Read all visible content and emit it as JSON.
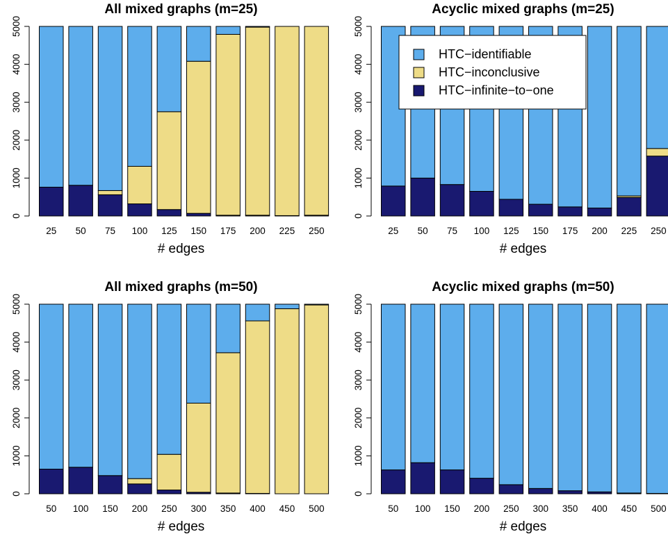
{
  "colors": {
    "identifiable": "#5DADEC",
    "inconclusive": "#EEDC87",
    "infinite": "#191970",
    "outline": "#000000"
  },
  "legend": {
    "entries": [
      {
        "label": "HTC−identifiable",
        "color_key": "identifiable"
      },
      {
        "label": "HTC−inconclusive",
        "color_key": "inconclusive"
      },
      {
        "label": "HTC−infinite−to−one",
        "color_key": "infinite"
      }
    ]
  },
  "chart_data": [
    {
      "type": "bar",
      "stacked": true,
      "title": "All mixed graphs (m=25)",
      "xlabel": "# edges",
      "ylabel": "",
      "ylim": [
        0,
        5000
      ],
      "yticks": [
        "0",
        "1000",
        "2000",
        "3000",
        "4000",
        "5000"
      ],
      "categories": [
        "25",
        "50",
        "75",
        "100",
        "125",
        "150",
        "175",
        "200",
        "225",
        "250"
      ],
      "series": [
        {
          "name": "HTC−infinite−to−one",
          "color_key": "infinite",
          "values": [
            760,
            810,
            560,
            320,
            170,
            70,
            20,
            20,
            10,
            20
          ]
        },
        {
          "name": "HTC−inconclusive",
          "color_key": "inconclusive",
          "values": [
            0,
            0,
            110,
            990,
            2580,
            4010,
            4770,
            4960,
            4990,
            4980
          ]
        },
        {
          "name": "HTC−identifiable",
          "color_key": "identifiable",
          "values": [
            4240,
            4190,
            4330,
            3690,
            2250,
            920,
            210,
            20,
            0,
            0
          ]
        }
      ]
    },
    {
      "type": "bar",
      "stacked": true,
      "title": "Acyclic mixed graphs (m=25)",
      "xlabel": "# edges",
      "ylabel": "",
      "ylim": [
        0,
        5000
      ],
      "yticks": [
        "0",
        "1000",
        "2000",
        "3000",
        "4000",
        "5000"
      ],
      "categories": [
        "25",
        "50",
        "75",
        "100",
        "125",
        "150",
        "175",
        "200",
        "225",
        "250"
      ],
      "legend_position": "top-right",
      "series": [
        {
          "name": "HTC−infinite−to−one",
          "color_key": "infinite",
          "values": [
            790,
            1000,
            830,
            650,
            440,
            310,
            240,
            210,
            490,
            1580
          ]
        },
        {
          "name": "HTC−inconclusive",
          "color_key": "inconclusive",
          "values": [
            0,
            0,
            0,
            0,
            0,
            0,
            0,
            0,
            40,
            200
          ]
        },
        {
          "name": "HTC−identifiable",
          "color_key": "identifiable",
          "values": [
            4210,
            4000,
            4170,
            4350,
            4560,
            4690,
            4760,
            4790,
            4470,
            3220
          ]
        }
      ]
    },
    {
      "type": "bar",
      "stacked": true,
      "title": "All mixed graphs (m=50)",
      "xlabel": "# edges",
      "ylabel": "",
      "ylim": [
        0,
        5000
      ],
      "yticks": [
        "0",
        "1000",
        "2000",
        "3000",
        "4000",
        "5000"
      ],
      "categories": [
        "50",
        "100",
        "150",
        "200",
        "250",
        "300",
        "350",
        "400",
        "450",
        "500"
      ],
      "series": [
        {
          "name": "HTC−infinite−to−one",
          "color_key": "infinite",
          "values": [
            650,
            700,
            480,
            260,
            100,
            40,
            20,
            10,
            0,
            0
          ]
        },
        {
          "name": "HTC−inconclusive",
          "color_key": "inconclusive",
          "values": [
            0,
            0,
            0,
            140,
            940,
            2350,
            3700,
            4550,
            4880,
            4980
          ]
        },
        {
          "name": "HTC−identifiable",
          "color_key": "identifiable",
          "values": [
            4350,
            4300,
            4520,
            4600,
            3960,
            2610,
            1280,
            440,
            120,
            20
          ]
        }
      ]
    },
    {
      "type": "bar",
      "stacked": true,
      "title": "Acyclic mixed graphs (m=50)",
      "xlabel": "# edges",
      "ylabel": "",
      "ylim": [
        0,
        5000
      ],
      "yticks": [
        "0",
        "1000",
        "2000",
        "3000",
        "4000",
        "5000"
      ],
      "categories": [
        "50",
        "100",
        "150",
        "200",
        "250",
        "300",
        "350",
        "400",
        "450",
        "500"
      ],
      "series": [
        {
          "name": "HTC−infinite−to−one",
          "color_key": "infinite",
          "values": [
            630,
            820,
            630,
            410,
            240,
            140,
            80,
            50,
            20,
            10
          ]
        },
        {
          "name": "HTC−inconclusive",
          "color_key": "inconclusive",
          "values": [
            0,
            0,
            0,
            0,
            0,
            0,
            0,
            0,
            0,
            0
          ]
        },
        {
          "name": "HTC−identifiable",
          "color_key": "identifiable",
          "values": [
            4370,
            4180,
            4370,
            4590,
            4760,
            4860,
            4920,
            4950,
            4980,
            4990
          ]
        }
      ]
    }
  ]
}
